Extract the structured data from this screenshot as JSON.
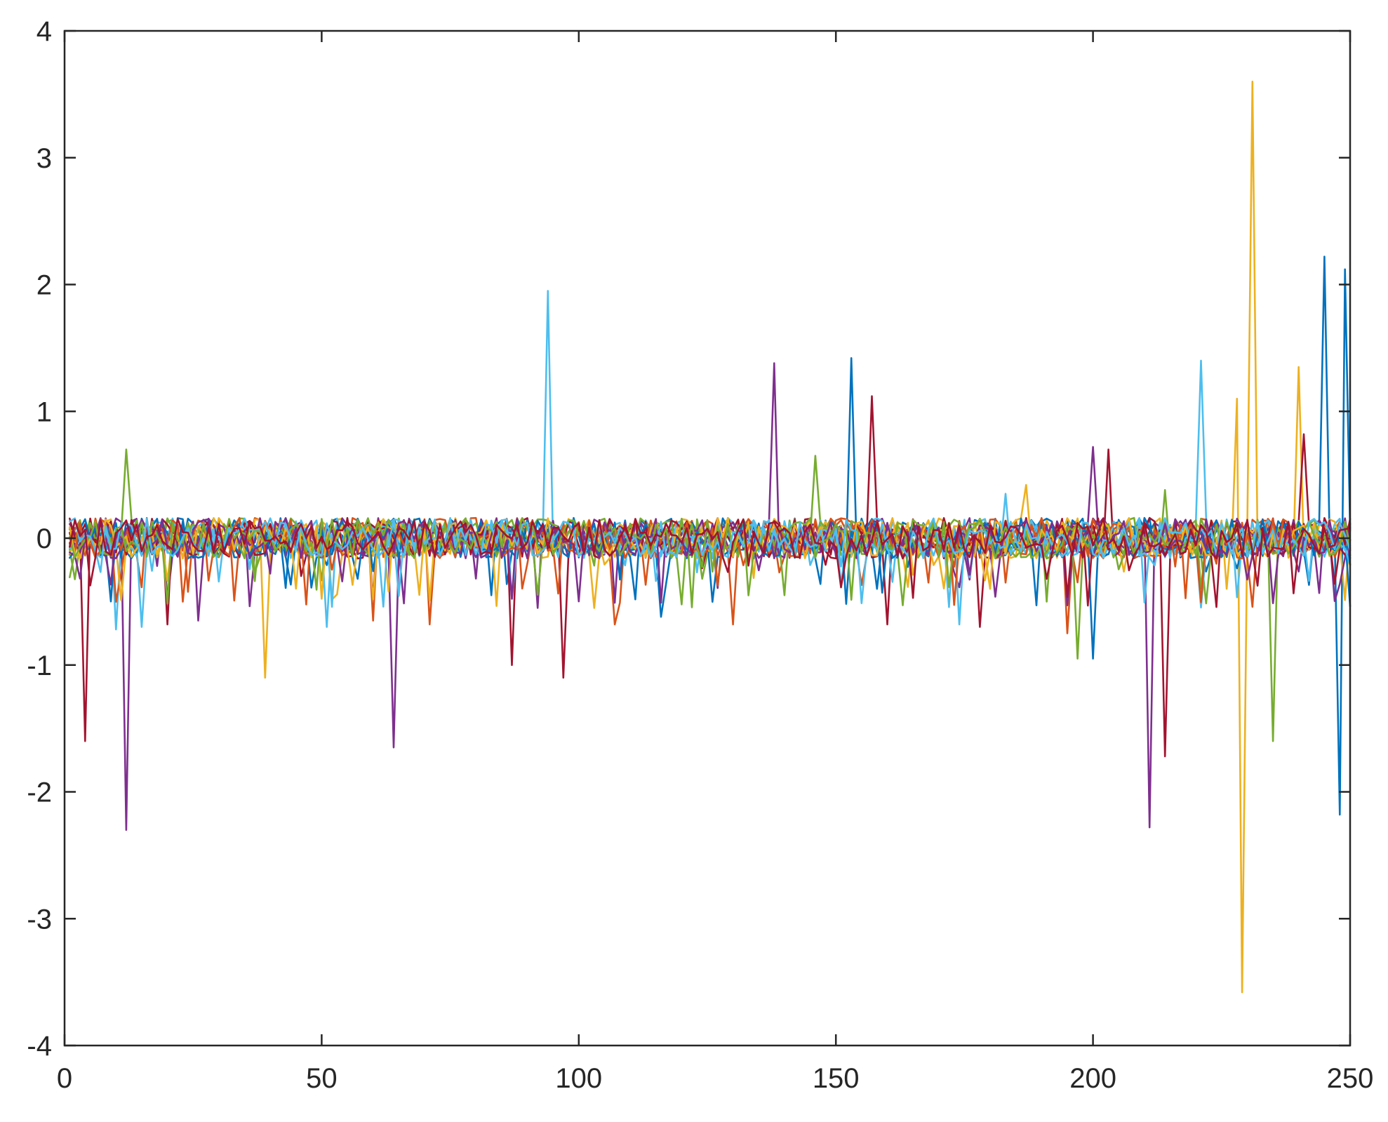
{
  "chart_data": {
    "type": "line",
    "title": "",
    "xlabel": "",
    "ylabel": "",
    "xlim": [
      0,
      250
    ],
    "ylim": [
      -4,
      4
    ],
    "x_ticks": [
      0,
      50,
      100,
      150,
      200,
      250
    ],
    "y_ticks": [
      4,
      3,
      2,
      1,
      0,
      -1,
      -2,
      -3,
      -4
    ],
    "grid": false,
    "legend": "none",
    "x_range": [
      1,
      250
    ],
    "colors": [
      "#0072BD",
      "#D95319",
      "#EDB120",
      "#7E2F8E",
      "#77AC30",
      "#4DBEEE",
      "#A2142F"
    ],
    "series": [
      {
        "color": "#0072BD",
        "spikes": [
          [
            153,
            1.42
          ],
          [
            245,
            2.22
          ],
          [
            249,
            2.12
          ],
          [
            248,
            -2.18
          ],
          [
            200,
            -0.95
          ],
          [
            116,
            -0.62
          ],
          [
            83,
            -0.45
          ]
        ]
      },
      {
        "color": "#D95319",
        "spikes": [
          [
            71,
            -0.68
          ],
          [
            130,
            -0.68
          ],
          [
            195,
            -0.75
          ],
          [
            60,
            -0.65
          ],
          [
            107,
            -0.68
          ],
          [
            183,
            -0.35
          ]
        ]
      },
      {
        "color": "#EDB120",
        "spikes": [
          [
            231,
            3.6
          ],
          [
            229,
            -3.58
          ],
          [
            240,
            1.35
          ],
          [
            228,
            1.1
          ],
          [
            39,
            -1.1
          ],
          [
            187,
            0.42
          ],
          [
            103,
            -0.55
          ]
        ]
      },
      {
        "color": "#7E2F8E",
        "spikes": [
          [
            138,
            1.38
          ],
          [
            12,
            -2.3
          ],
          [
            64,
            -1.65
          ],
          [
            211,
            -2.28
          ],
          [
            200,
            0.72
          ],
          [
            26,
            -0.65
          ],
          [
            92,
            -0.55
          ]
        ]
      },
      {
        "color": "#77AC30",
        "spikes": [
          [
            12,
            0.7
          ],
          [
            146,
            0.65
          ],
          [
            235,
            -1.6
          ],
          [
            197,
            -0.95
          ],
          [
            214,
            0.38
          ],
          [
            124,
            -0.32
          ]
        ]
      },
      {
        "color": "#4DBEEE",
        "spikes": [
          [
            94,
            1.95
          ],
          [
            221,
            1.4
          ],
          [
            51,
            -0.7
          ],
          [
            15,
            -0.7
          ],
          [
            174,
            -0.68
          ],
          [
            10,
            -0.72
          ],
          [
            183,
            0.35
          ]
        ]
      },
      {
        "color": "#A2142F",
        "spikes": [
          [
            157,
            1.12
          ],
          [
            4,
            -1.6
          ],
          [
            214,
            -1.72
          ],
          [
            97,
            -1.1
          ],
          [
            87,
            -1.0
          ],
          [
            241,
            0.82
          ],
          [
            160,
            -0.68
          ],
          [
            203,
            0.7
          ],
          [
            20,
            -0.68
          ],
          [
            178,
            -0.7
          ]
        ]
      }
    ]
  }
}
